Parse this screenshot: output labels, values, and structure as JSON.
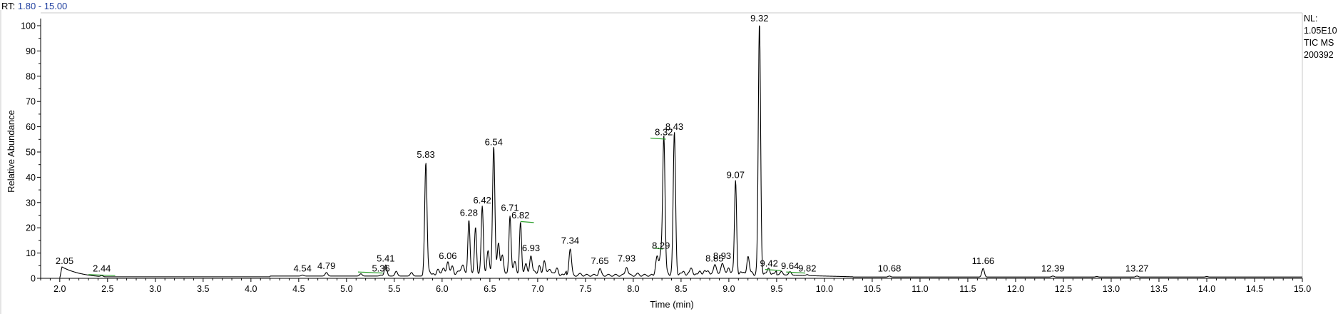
{
  "header": {
    "rt_label": "RT:",
    "rt_range": "1.80 - 15.00"
  },
  "info": {
    "nl_label": "NL:",
    "nl_value": "1.05E10",
    "scan_type": "TIC  MS",
    "file": "200392"
  },
  "colors": {
    "trace": "#000000",
    "baseline_marker": "#2ea02e",
    "rt_value": "#1f3f9f"
  },
  "chart_data": {
    "type": "line",
    "xlabel": "Time (min)",
    "ylabel": "Relative Abundance",
    "xlim": [
      1.8,
      15.0
    ],
    "ylim": [
      0,
      100
    ],
    "x_ticks": [
      2.0,
      2.5,
      3.0,
      3.5,
      4.0,
      4.5,
      5.0,
      5.5,
      6.0,
      6.5,
      7.0,
      7.5,
      8.0,
      8.5,
      9.0,
      9.5,
      10.0,
      10.5,
      11.0,
      11.5,
      12.0,
      12.5,
      13.0,
      13.5,
      14.0,
      14.5,
      15.0
    ],
    "x_tick_labels": [
      "2.0",
      "2.5",
      "3.0",
      "3.5",
      "4.0",
      "4.5",
      "5.0",
      "5.5",
      "6.0",
      "6.5",
      "7.0",
      "7.5",
      "8.0",
      "8.5",
      "9.0",
      "9.5",
      "10.0",
      "10.5",
      "11.0",
      "11.5",
      "12.0",
      "12.5",
      "13.0",
      "13.5",
      "14.0",
      "14.5",
      "15.0"
    ],
    "y_ticks": [
      0,
      10,
      20,
      30,
      40,
      50,
      60,
      70,
      80,
      90,
      100
    ],
    "y_tick_labels": [
      "0",
      "10",
      "20",
      "30",
      "40",
      "50",
      "60",
      "70",
      "80",
      "90",
      "100"
    ],
    "grid": false,
    "peaks": [
      {
        "label": "2.05",
        "x": 2.05,
        "y": 4
      },
      {
        "label": "2.44",
        "x": 2.44,
        "y": 1
      },
      {
        "label": "4.54",
        "x": 4.54,
        "y": 1
      },
      {
        "label": "4.79",
        "x": 4.79,
        "y": 2
      },
      {
        "label": "5.36",
        "x": 5.36,
        "y": 1
      },
      {
        "label": "5.41",
        "x": 5.41,
        "y": 5
      },
      {
        "label": "5.83",
        "x": 5.83,
        "y": 46
      },
      {
        "label": "6.06",
        "x": 6.06,
        "y": 6
      },
      {
        "label": "6.28",
        "x": 6.28,
        "y": 23
      },
      {
        "label": "6.42",
        "x": 6.42,
        "y": 28
      },
      {
        "label": "6.54",
        "x": 6.54,
        "y": 51
      },
      {
        "label": "6.71",
        "x": 6.71,
        "y": 25
      },
      {
        "label": "6.82",
        "x": 6.82,
        "y": 22
      },
      {
        "label": "6.93",
        "x": 6.93,
        "y": 9
      },
      {
        "label": "7.34",
        "x": 7.34,
        "y": 12
      },
      {
        "label": "7.65",
        "x": 7.65,
        "y": 4
      },
      {
        "label": "7.93",
        "x": 7.93,
        "y": 5
      },
      {
        "label": "8.29",
        "x": 8.29,
        "y": 10
      },
      {
        "label": "8.32",
        "x": 8.32,
        "y": 55
      },
      {
        "label": "8.43",
        "x": 8.43,
        "y": 57
      },
      {
        "label": "8.85",
        "x": 8.85,
        "y": 5
      },
      {
        "label": "8.93",
        "x": 8.93,
        "y": 6
      },
      {
        "label": "9.07",
        "x": 9.07,
        "y": 38
      },
      {
        "label": "9.32",
        "x": 9.32,
        "y": 100
      },
      {
        "label": "9.42",
        "x": 9.42,
        "y": 3
      },
      {
        "label": "9.64",
        "x": 9.64,
        "y": 2
      },
      {
        "label": "9.82",
        "x": 9.82,
        "y": 1
      },
      {
        "label": "10.68",
        "x": 10.68,
        "y": 1
      },
      {
        "label": "11.66",
        "x": 11.66,
        "y": 4
      },
      {
        "label": "12.39",
        "x": 12.39,
        "y": 1
      },
      {
        "label": "13.27",
        "x": 13.27,
        "y": 1
      }
    ],
    "minor_peaks": [
      {
        "x": 5.15,
        "y": 1.5
      },
      {
        "x": 5.52,
        "y": 2.5
      },
      {
        "x": 5.68,
        "y": 2
      },
      {
        "x": 5.95,
        "y": 3
      },
      {
        "x": 6.02,
        "y": 4
      },
      {
        "x": 6.11,
        "y": 4
      },
      {
        "x": 6.17,
        "y": 3
      },
      {
        "x": 6.22,
        "y": 5
      },
      {
        "x": 6.35,
        "y": 20
      },
      {
        "x": 6.48,
        "y": 11
      },
      {
        "x": 6.59,
        "y": 14
      },
      {
        "x": 6.63,
        "y": 8
      },
      {
        "x": 6.76,
        "y": 6
      },
      {
        "x": 6.88,
        "y": 5
      },
      {
        "x": 7.02,
        "y": 5
      },
      {
        "x": 7.07,
        "y": 6
      },
      {
        "x": 7.13,
        "y": 4
      },
      {
        "x": 7.2,
        "y": 3
      },
      {
        "x": 7.45,
        "y": 2
      },
      {
        "x": 8.05,
        "y": 2
      },
      {
        "x": 8.25,
        "y": 8
      },
      {
        "x": 8.6,
        "y": 3
      },
      {
        "x": 8.75,
        "y": 3
      },
      {
        "x": 9.0,
        "y": 4
      },
      {
        "x": 9.2,
        "y": 8
      },
      {
        "x": 9.55,
        "y": 2
      },
      {
        "x": 12.85,
        "y": 0.8
      },
      {
        "x": 14.0,
        "y": 0.6
      }
    ],
    "baseline_markers": [
      {
        "x1": 2.3,
        "x2": 2.58,
        "y": 1.5
      },
      {
        "x1": 5.12,
        "x2": 5.38,
        "y": 2.5
      },
      {
        "x1": 6.82,
        "x2": 6.96,
        "y": 22.5
      },
      {
        "x1": 8.18,
        "x2": 8.34,
        "y": 55.5
      },
      {
        "x1": 8.2,
        "x2": 8.31,
        "y": 12
      },
      {
        "x1": 9.38,
        "x2": 9.55,
        "y": 3.5
      },
      {
        "x1": 9.6,
        "x2": 9.8,
        "y": 2.5
      }
    ]
  }
}
